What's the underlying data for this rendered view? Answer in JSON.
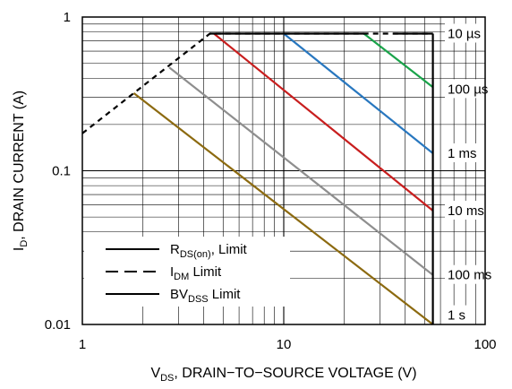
{
  "chart_data": {
    "type": "line",
    "title": "",
    "xlabel": "V",
    "xlabel_sub": "DS",
    "xlabel_rest": ", DRAIN−TO−SOURCE VOLTAGE (V)",
    "ylabel": "I",
    "ylabel_sub": "D",
    "ylabel_rest": ", DRAIN CURRENT (A)",
    "x_scale": "log",
    "y_scale": "log",
    "xlim": [
      1,
      100
    ],
    "ylim": [
      0.01,
      1
    ],
    "x_ticks": [
      {
        "v": 1,
        "label": "1"
      },
      {
        "v": 10,
        "label": "10"
      },
      {
        "v": 100,
        "label": "100"
      }
    ],
    "y_ticks": [
      {
        "v": 1,
        "label": "1"
      },
      {
        "v": 0.1,
        "label": "0.1"
      },
      {
        "v": 0.01,
        "label": "0.01"
      }
    ],
    "grid": true,
    "legend_position": "bottom-left",
    "legend": [
      {
        "style": "solid",
        "text": "R",
        "sub": "DS(on)",
        "rest": ", Limit"
      },
      {
        "style": "dashed",
        "text": "I",
        "sub": "DM",
        "rest": " Limit"
      },
      {
        "style": "solid",
        "text": "BV",
        "sub": "DSS",
        "rest": " Limit"
      }
    ],
    "pulse_labels": [
      {
        "text": "10 µs",
        "y": 0.78
      },
      {
        "text": "100 µs",
        "y": 0.34
      },
      {
        "text": "1 ms",
        "y": 0.13
      },
      {
        "text": "10 ms",
        "y": 0.055
      },
      {
        "text": "100 ms",
        "y": 0.021
      },
      {
        "text": "1 s",
        "y": 0.0115
      }
    ],
    "series": [
      {
        "name": "10 µs",
        "color": "#1aa34a",
        "style": "solid",
        "points": [
          [
            25,
            0.78
          ],
          [
            55,
            0.35
          ]
        ]
      },
      {
        "name": "100 µs",
        "color": "#2877bf",
        "style": "solid",
        "points": [
          [
            10,
            0.78
          ],
          [
            55,
            0.13
          ]
        ]
      },
      {
        "name": "1 ms",
        "color": "#c81e1e",
        "style": "solid",
        "points": [
          [
            4.5,
            0.78
          ],
          [
            55,
            0.055
          ]
        ]
      },
      {
        "name": "10 ms",
        "color": "#8e8e8e",
        "style": "solid",
        "points": [
          [
            2.7,
            0.47
          ],
          [
            55,
            0.021
          ]
        ]
      },
      {
        "name": "100 ms",
        "color": "#8c6a10",
        "style": "solid",
        "points": [
          [
            1.8,
            0.32
          ],
          [
            55,
            0.01
          ]
        ]
      },
      {
        "name": "IDM limit",
        "color": "#000000",
        "style": "dashed",
        "points": [
          [
            1,
            0.175
          ],
          [
            4.3,
            0.78
          ],
          [
            55,
            0.78
          ]
        ]
      },
      {
        "name": "IDM flat",
        "color": "#000000",
        "style": "solid",
        "points": [
          [
            4.3,
            0.78
          ],
          [
            25,
            0.78
          ]
        ]
      },
      {
        "name": "IDM flat 2",
        "color": "#000000",
        "style": "solid",
        "points": [
          [
            35,
            0.78
          ],
          [
            55,
            0.78
          ]
        ]
      },
      {
        "name": "BVDSS limit",
        "color": "#000000",
        "style": "solid",
        "points": [
          [
            55,
            0.78
          ],
          [
            55,
            0.01
          ]
        ]
      }
    ]
  }
}
